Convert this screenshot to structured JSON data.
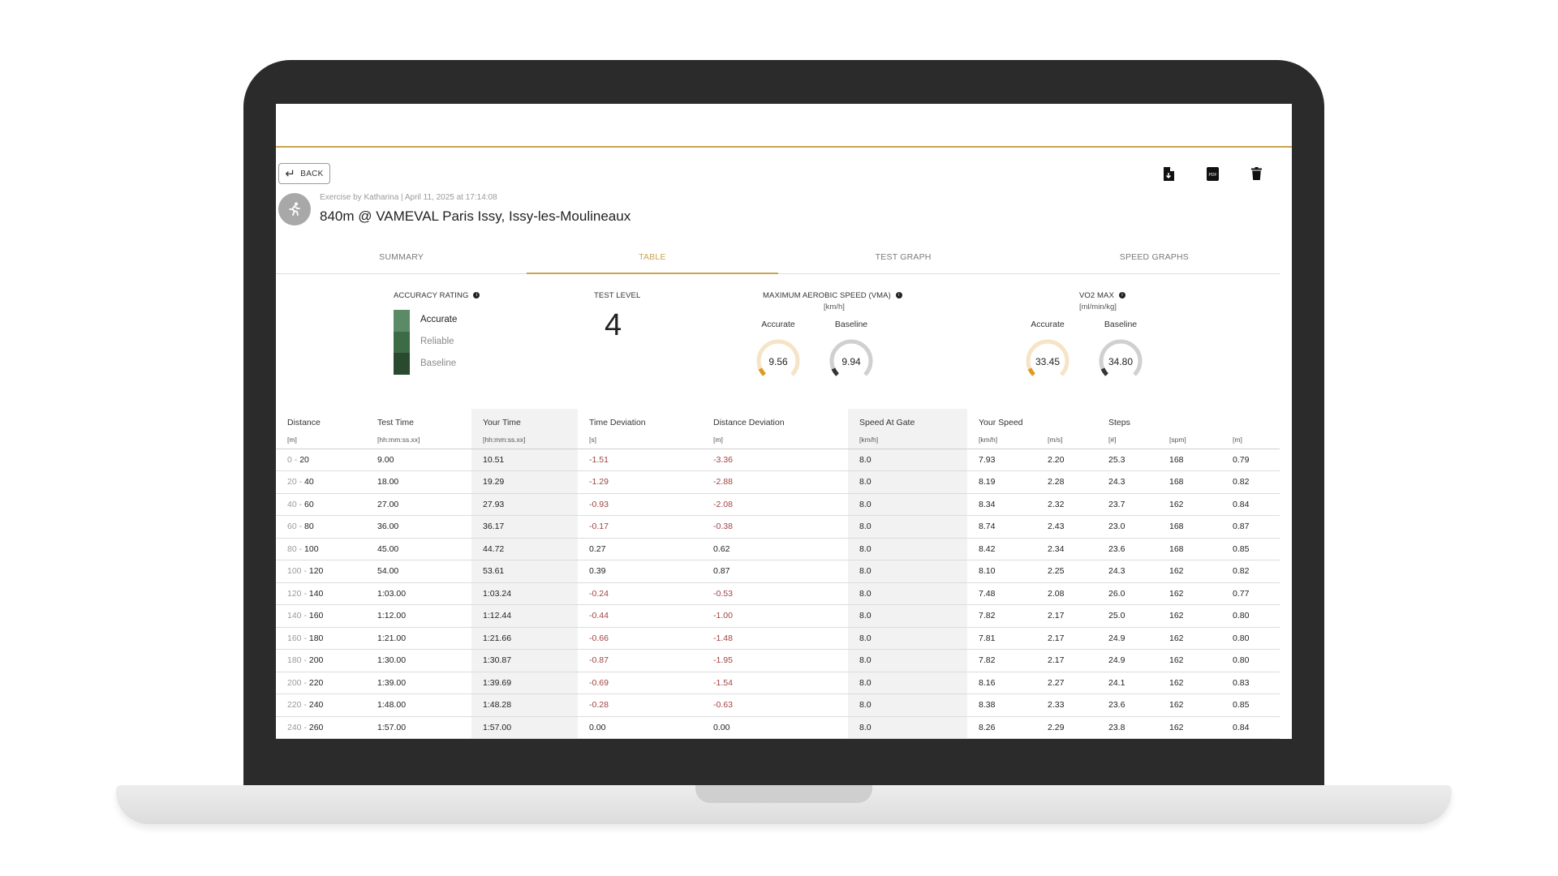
{
  "toolbar": {
    "back_label": "BACK",
    "icons": [
      "file-download-icon",
      "pdf-icon",
      "trash-icon"
    ],
    "pdf_label": "PDF"
  },
  "header": {
    "meta": "Exercise by Katharina | April 11, 2025 at 17:14:08",
    "title": "840m @ VAMEVAL Paris Issy, Issy-les-Moulineaux"
  },
  "tabs": [
    {
      "label": "SUMMARY"
    },
    {
      "label": "TABLE",
      "active": true
    },
    {
      "label": "TEST GRAPH"
    },
    {
      "label": "SPEED GRAPHS"
    }
  ],
  "accuracy": {
    "label": "ACCURACY RATING",
    "levels": [
      {
        "label": "Accurate",
        "color": "#5a8a66"
      },
      {
        "label": "Reliable",
        "color": "#3d6b46"
      },
      {
        "label": "Baseline",
        "color": "#2a4a30"
      }
    ]
  },
  "test_level": {
    "label": "TEST LEVEL",
    "value": "4"
  },
  "vma": {
    "label": "MAXIMUM AEROBIC SPEED (VMA)",
    "unit": "[km/h]",
    "accurate": {
      "label": "Accurate",
      "value": "9.56",
      "fraction": 0.08
    },
    "baseline": {
      "label": "Baseline",
      "value": "9.94",
      "fraction": 0.08
    }
  },
  "vo2": {
    "label": "VO2 MAX",
    "unit": "[ml/min/kg]",
    "accurate": {
      "label": "Accurate",
      "value": "33.45",
      "fraction": 0.08
    },
    "baseline": {
      "label": "Baseline",
      "value": "34.80",
      "fraction": 0.08
    }
  },
  "colors": {
    "accent": "#c9a452",
    "gauge_accurate_track": "#f7e3c6",
    "gauge_accurate_fill": "#e09a1e",
    "gauge_baseline_track": "#d0d0d0",
    "gauge_baseline_fill": "#333333",
    "negative": "#a24242"
  },
  "table": {
    "headers": [
      "Distance",
      "Test Time",
      "Your Time",
      "Time Deviation",
      "Distance Deviation",
      "Speed At Gate",
      "Your Speed",
      "",
      "Steps",
      "",
      ""
    ],
    "units": [
      "[m]",
      "[hh:mm:ss.xx]",
      "[hh:mm:ss.xx]",
      "[s]",
      "[m]",
      "[km/h]",
      "[km/h]",
      "[m/s]",
      "[#]",
      "[spm]",
      "[m]"
    ],
    "rows": [
      [
        "0",
        "20",
        "9.00",
        "10.51",
        "-1.51",
        "-3.36",
        "8.0",
        "7.93",
        "2.20",
        "25.3",
        "168",
        "0.79"
      ],
      [
        "20",
        "40",
        "18.00",
        "19.29",
        "-1.29",
        "-2.88",
        "8.0",
        "8.19",
        "2.28",
        "24.3",
        "168",
        "0.82"
      ],
      [
        "40",
        "60",
        "27.00",
        "27.93",
        "-0.93",
        "-2.08",
        "8.0",
        "8.34",
        "2.32",
        "23.7",
        "162",
        "0.84"
      ],
      [
        "60",
        "80",
        "36.00",
        "36.17",
        "-0.17",
        "-0.38",
        "8.0",
        "8.74",
        "2.43",
        "23.0",
        "168",
        "0.87"
      ],
      [
        "80",
        "100",
        "45.00",
        "44.72",
        "0.27",
        "0.62",
        "8.0",
        "8.42",
        "2.34",
        "23.6",
        "168",
        "0.85"
      ],
      [
        "100",
        "120",
        "54.00",
        "53.61",
        "0.39",
        "0.87",
        "8.0",
        "8.10",
        "2.25",
        "24.3",
        "162",
        "0.82"
      ],
      [
        "120",
        "140",
        "1:03.00",
        "1:03.24",
        "-0.24",
        "-0.53",
        "8.0",
        "7.48",
        "2.08",
        "26.0",
        "162",
        "0.77"
      ],
      [
        "140",
        "160",
        "1:12.00",
        "1:12.44",
        "-0.44",
        "-1.00",
        "8.0",
        "7.82",
        "2.17",
        "25.0",
        "162",
        "0.80"
      ],
      [
        "160",
        "180",
        "1:21.00",
        "1:21.66",
        "-0.66",
        "-1.48",
        "8.0",
        "7.81",
        "2.17",
        "24.9",
        "162",
        "0.80"
      ],
      [
        "180",
        "200",
        "1:30.00",
        "1:30.87",
        "-0.87",
        "-1.95",
        "8.0",
        "7.82",
        "2.17",
        "24.9",
        "162",
        "0.80"
      ],
      [
        "200",
        "220",
        "1:39.00",
        "1:39.69",
        "-0.69",
        "-1.54",
        "8.0",
        "8.16",
        "2.27",
        "24.1",
        "162",
        "0.83"
      ],
      [
        "220",
        "240",
        "1:48.00",
        "1:48.28",
        "-0.28",
        "-0.63",
        "8.0",
        "8.38",
        "2.33",
        "23.6",
        "162",
        "0.85"
      ],
      [
        "240",
        "260",
        "1:57.00",
        "1:57.00",
        "0.00",
        "0.00",
        "8.0",
        "8.26",
        "2.29",
        "23.8",
        "162",
        "0.84"
      ]
    ]
  }
}
